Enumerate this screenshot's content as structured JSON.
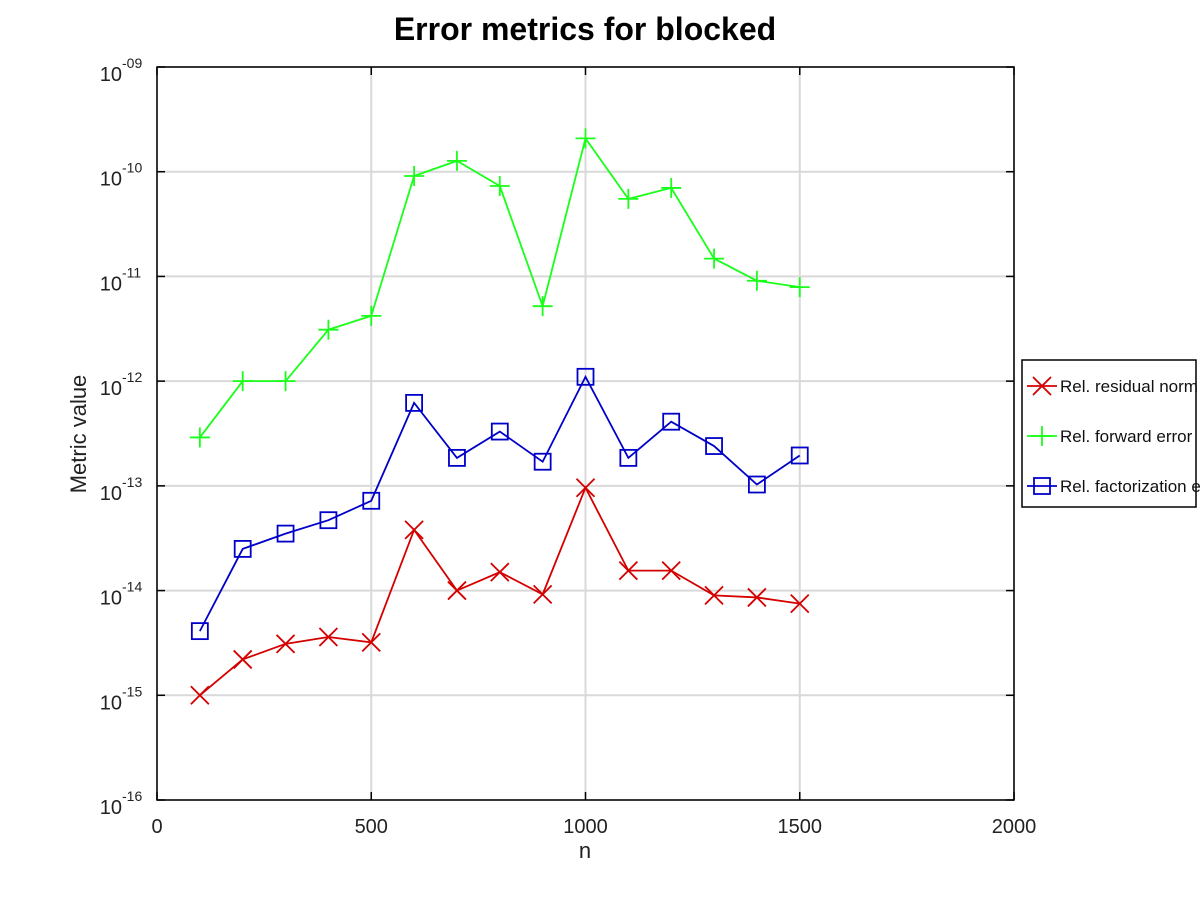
{
  "chart_data": {
    "type": "line",
    "title": "Error metrics for blocked",
    "xlabel": "n",
    "ylabel": "Metric value",
    "xlim": [
      0,
      2000
    ],
    "ylim": [
      1e-16,
      1e-09
    ],
    "y_scale": "log",
    "x_ticks": [
      0,
      500,
      1000,
      1500,
      2000
    ],
    "x_tick_labels": [
      "0",
      "500",
      "1000",
      "1500",
      "2000"
    ],
    "y_tick_exponents": [
      "-16",
      "-15",
      "-14",
      "-13",
      "-12",
      "-11",
      "-10",
      "-09"
    ],
    "y_tick_base": "10",
    "grid": true,
    "legend_position": "right-outside",
    "x": [
      100,
      200,
      300,
      400,
      500,
      600,
      700,
      800,
      900,
      1000,
      1100,
      1200,
      1300,
      1400,
      1500
    ],
    "series": [
      {
        "name": "Rel. residual norm",
        "color": "#d40000",
        "marker": "x",
        "values": [
          1e-15,
          2.2e-15,
          3.1e-15,
          3.6e-15,
          3.2e-15,
          3.8e-14,
          1e-14,
          1.5e-14,
          9.2e-15,
          9.6e-14,
          1.55e-14,
          1.55e-14,
          9e-15,
          8.6e-15,
          7.5e-15
        ]
      },
      {
        "name": "Rel. forward error",
        "color": "#19ff19",
        "marker": "+",
        "values": [
          2.9e-13,
          1e-12,
          1e-12,
          3.1e-12,
          4.2e-12,
          9.1e-11,
          1.27e-10,
          7.3e-11,
          5.2e-12,
          2.08e-10,
          5.5e-11,
          7e-11,
          1.48e-11,
          9.1e-12,
          7.9e-12
        ]
      },
      {
        "name": "Rel. factorization error",
        "color": "#0000c8",
        "marker": "square",
        "values": [
          4.1e-15,
          2.5e-14,
          3.5e-14,
          4.7e-14,
          7.2e-14,
          6.2e-13,
          1.85e-13,
          3.3e-13,
          1.7e-13,
          1.1e-12,
          1.85e-13,
          4.1e-13,
          2.4e-13,
          1.03e-13,
          1.95e-13
        ]
      }
    ]
  },
  "legend": {
    "items": [
      "Rel. residual norm",
      "Rel. forward error",
      "Rel. factorization error"
    ]
  }
}
